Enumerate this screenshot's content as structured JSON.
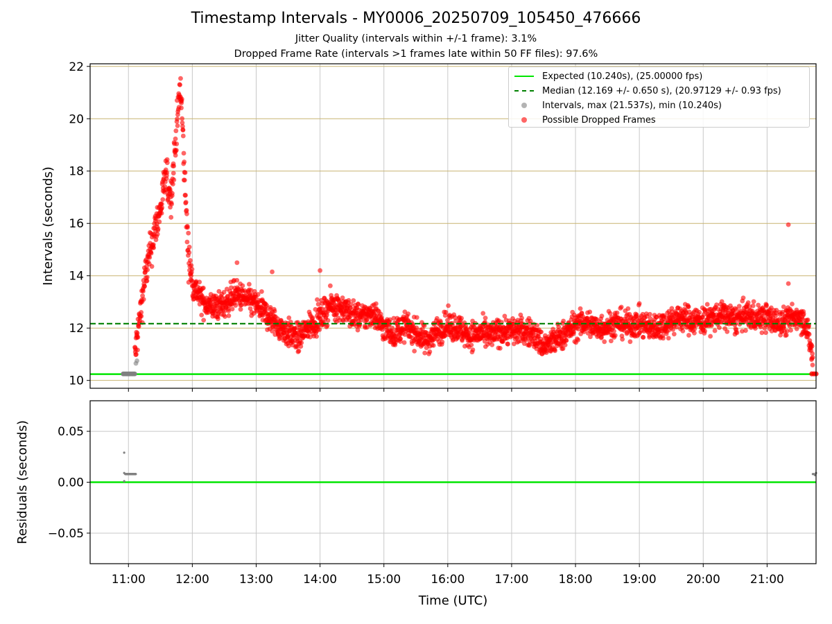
{
  "figure": {
    "title": "Timestamp Intervals - MY0006_20250709_105450_476666",
    "subtitle_1": "Jitter Quality (intervals within +/-1 frame): 3.1%",
    "subtitle_2": "Dropped Frame Rate (intervals >1 frames late within 50 FF files): 97.6%"
  },
  "colors": {
    "expected": "#00e600",
    "median": "#008000",
    "intervals": "#808080",
    "dropped": "#ff0000",
    "interval_gridline": "#c8b470",
    "grid": "#c8c8c8"
  },
  "legend": {
    "expected": "Expected (10.240s), (25.00000 fps)",
    "median": "Median (12.169 +/- 0.650 s), (20.97129 +/- 0.93 fps)",
    "intervals": "Intervals, max (21.537s), min (10.240s)",
    "dropped": "Possible Dropped Frames",
    "placement": "top-right"
  },
  "chart_data": [
    {
      "type": "scatter",
      "panel": "intervals",
      "ylabel": "Intervals (seconds)",
      "xlabel": "",
      "xlim": [
        "10:24",
        "21:46"
      ],
      "ylim": [
        9.7,
        22.1
      ],
      "y_ticks": [
        10,
        12,
        14,
        16,
        18,
        20,
        22
      ],
      "expected_interval": 10.24,
      "median_interval": 12.169,
      "interval_gridlines_every": 0.2,
      "interval_gridlines_visible": "every 10th line shown at y ticks",
      "grid": true,
      "series": [
        {
          "name": "Intervals, max (21.537s), min (10.240s)",
          "color": "#808080",
          "points": [
            [
              "10:55",
              10.25
            ],
            [
              "10:58",
              10.25
            ],
            [
              "11:01",
              10.25
            ],
            [
              "11:04",
              10.25
            ],
            [
              "11:06",
              10.25
            ],
            [
              "11:07",
              10.65
            ],
            [
              "11:08",
              10.75
            ]
          ]
        },
        {
          "name": "Possible Dropped Frames",
          "color": "#ff0000",
          "trend": [
            [
              "11:06",
              10.9
            ],
            [
              "11:10",
              12.2
            ],
            [
              "11:15",
              13.8
            ],
            [
              "11:20",
              14.8
            ],
            [
              "11:25",
              15.8
            ],
            [
              "11:30",
              16.5
            ],
            [
              "11:35",
              17.8
            ],
            [
              "11:40",
              17.0
            ],
            [
              "11:45",
              19.5
            ],
            [
              "11:48",
              21.0
            ],
            [
              "11:50",
              20.5
            ],
            [
              "11:53",
              17.5
            ],
            [
              "11:56",
              15.0
            ],
            [
              "12:00",
              13.7
            ],
            [
              "12:10",
              13.0
            ],
            [
              "12:20",
              12.8
            ],
            [
              "12:30",
              12.9
            ],
            [
              "12:40",
              13.3
            ],
            [
              "12:50",
              13.1
            ],
            [
              "13:00",
              12.9
            ],
            [
              "13:10",
              12.5
            ],
            [
              "13:20",
              12.1
            ],
            [
              "13:30",
              11.8
            ],
            [
              "13:40",
              11.6
            ],
            [
              "13:50",
              12.1
            ],
            [
              "14:00",
              12.4
            ],
            [
              "14:10",
              12.9
            ],
            [
              "14:20",
              12.8
            ],
            [
              "14:30",
              12.5
            ],
            [
              "14:40",
              12.4
            ],
            [
              "14:50",
              12.6
            ],
            [
              "15:00",
              12.0
            ],
            [
              "15:10",
              11.8
            ],
            [
              "15:20",
              12.1
            ],
            [
              "15:30",
              11.8
            ],
            [
              "15:40",
              11.5
            ],
            [
              "15:50",
              11.9
            ],
            [
              "16:00",
              12.1
            ],
            [
              "16:10",
              12.0
            ],
            [
              "16:20",
              11.7
            ],
            [
              "16:30",
              11.8
            ],
            [
              "16:40",
              11.7
            ],
            [
              "16:50",
              11.9
            ],
            [
              "17:00",
              11.9
            ],
            [
              "17:10",
              11.9
            ],
            [
              "17:20",
              11.8
            ],
            [
              "17:30",
              11.3
            ],
            [
              "17:40",
              11.5
            ],
            [
              "17:50",
              11.8
            ],
            [
              "18:00",
              12.1
            ],
            [
              "18:10",
              12.2
            ],
            [
              "18:20",
              12.0
            ],
            [
              "18:30",
              12.1
            ],
            [
              "18:40",
              12.2
            ],
            [
              "18:50",
              12.1
            ],
            [
              "19:00",
              12.2
            ],
            [
              "19:10",
              12.0
            ],
            [
              "19:20",
              12.1
            ],
            [
              "19:30",
              12.3
            ],
            [
              "19:40",
              12.4
            ],
            [
              "19:50",
              12.3
            ],
            [
              "20:00",
              12.3
            ],
            [
              "20:10",
              12.4
            ],
            [
              "20:20",
              12.5
            ],
            [
              "20:30",
              12.3
            ],
            [
              "20:40",
              12.5
            ],
            [
              "20:50",
              12.4
            ],
            [
              "21:00",
              12.4
            ],
            [
              "21:10",
              12.2
            ],
            [
              "21:20",
              12.3
            ],
            [
              "21:30",
              12.5
            ],
            [
              "21:36",
              12.2
            ],
            [
              "21:40",
              11.5
            ],
            [
              "21:43",
              10.8
            ]
          ],
          "spread": 0.45,
          "outliers": [
            [
              "11:49",
              21.54
            ],
            [
              "21:20",
              15.95
            ],
            [
              "21:20",
              13.7
            ],
            [
              "14:00",
              14.2
            ],
            [
              "13:15",
              14.15
            ],
            [
              "12:42",
              14.5
            ]
          ],
          "end_cluster": [
            [
              "21:42",
              10.25
            ],
            [
              "21:44",
              10.25
            ],
            [
              "21:46",
              10.25
            ]
          ]
        }
      ]
    },
    {
      "type": "scatter",
      "panel": "residuals",
      "ylabel": "Residuals (seconds)",
      "xlabel": "Time (UTC)",
      "xlim": [
        "10:24",
        "21:46"
      ],
      "ylim": [
        -0.08,
        0.08
      ],
      "y_ticks": [
        "0.05",
        "0.00",
        "−0.05"
      ],
      "x_ticks": [
        "11:00",
        "12:00",
        "13:00",
        "14:00",
        "15:00",
        "16:00",
        "17:00",
        "18:00",
        "19:00",
        "20:00",
        "21:00"
      ],
      "zero_line": 0.0,
      "grid": true,
      "series": [
        {
          "name": "Residuals",
          "color": "#808080",
          "points": [
            [
              "10:56",
              0.029
            ],
            [
              "10:56",
              0.009
            ],
            [
              "10:58",
              0.008
            ],
            [
              "11:00",
              0.008
            ],
            [
              "11:02",
              0.008
            ],
            [
              "11:04",
              0.008
            ],
            [
              "11:06",
              0.008
            ],
            [
              "10:56",
              0.001
            ],
            [
              "21:43",
              0.008
            ],
            [
              "21:44",
              0.008
            ],
            [
              "21:45",
              0.007
            ],
            [
              "21:46",
              0.009
            ]
          ]
        }
      ]
    }
  ]
}
